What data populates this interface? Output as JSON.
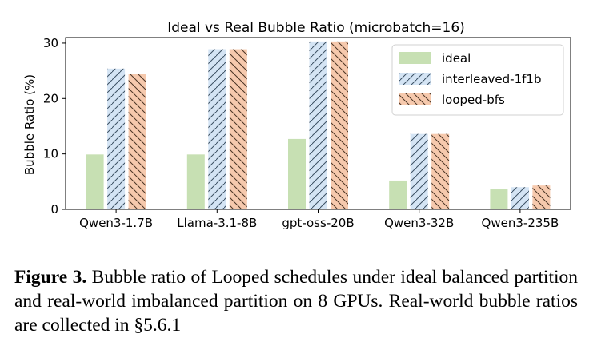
{
  "chart_data": {
    "type": "bar",
    "title": "Ideal vs Real Bubble Ratio (microbatch=16)",
    "xlabel": "",
    "ylabel": "Bubble Ratio (%)",
    "ylim": [
      0,
      31
    ],
    "yticks": [
      0,
      10,
      20,
      30
    ],
    "grid": false,
    "legend_position": "top-right",
    "categories": [
      "Qwen3-1.7B",
      "Llama-3.1-8B",
      "gpt-oss-20B",
      "Qwen3-32B",
      "Qwen3-235B"
    ],
    "series": [
      {
        "name": "ideal",
        "values": [
          9.9,
          9.9,
          12.7,
          5.2,
          3.6
        ],
        "color": "#c7e0b3",
        "pattern": "none"
      },
      {
        "name": "interleaved-1f1b",
        "values": [
          25.4,
          28.9,
          30.3,
          13.6,
          4.0
        ],
        "color": "#d4e4f4",
        "pattern": "hatch-forward"
      },
      {
        "name": "looped-bfs",
        "values": [
          24.4,
          28.9,
          30.3,
          13.6,
          4.3
        ],
        "color": "#f6c9ad",
        "pattern": "hatch-back"
      }
    ]
  },
  "caption": {
    "label": "Figure 3.",
    "text": "Bubble ratio of Looped schedules under ideal balanced partition and real-world imbalanced partition on 8 GPUs. Real-world bubble ratios are collected in §5.6.1"
  }
}
